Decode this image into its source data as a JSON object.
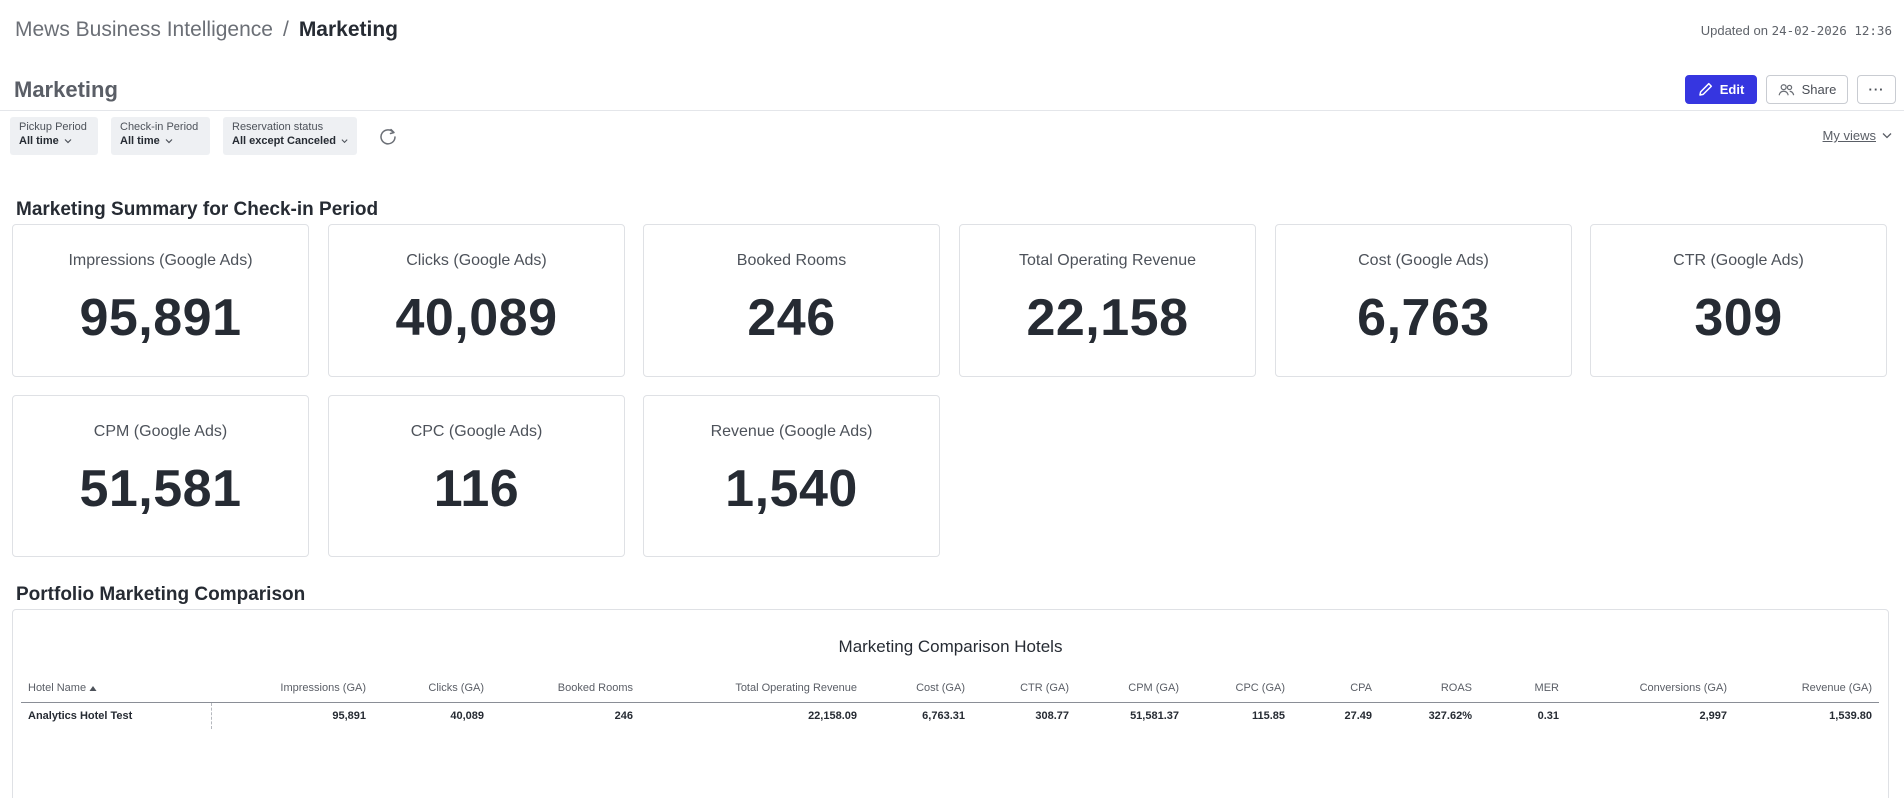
{
  "breadcrumb": {
    "parent": "Mews Business Intelligence",
    "separator": "/",
    "current": "Marketing"
  },
  "updated": {
    "prefix": "Updated on",
    "timestamp": "24-02-2026 12:36"
  },
  "page": {
    "title": "Marketing"
  },
  "actions": {
    "edit_label": "Edit",
    "share_label": "Share",
    "more_label": "···"
  },
  "filters": [
    {
      "label": "Pickup Period",
      "value": "All time"
    },
    {
      "label": "Check-in Period",
      "value": "All time"
    },
    {
      "label": "Reservation status",
      "value": "All except Canceled"
    }
  ],
  "my_views": {
    "label": "My views"
  },
  "summary": {
    "title": "Marketing Summary for Check-in Period",
    "cards": [
      {
        "label": "Impressions (Google Ads)",
        "value": "95,891"
      },
      {
        "label": "Clicks (Google Ads)",
        "value": "40,089"
      },
      {
        "label": "Booked Rooms",
        "value": "246"
      },
      {
        "label": "Total Operating Revenue",
        "value": "22,158"
      },
      {
        "label": "Cost (Google Ads)",
        "value": "6,763"
      },
      {
        "label": "CTR (Google Ads)",
        "value": "309"
      },
      {
        "label": "CPM (Google Ads)",
        "value": "51,581"
      },
      {
        "label": "CPC (Google Ads)",
        "value": "116"
      },
      {
        "label": "Revenue (Google Ads)",
        "value": "1,540"
      }
    ]
  },
  "comparison": {
    "title": "Portfolio Marketing Comparison",
    "table_title": "Marketing Comparison Hotels",
    "columns": [
      "Hotel Name",
      "Impressions (GA)",
      "Clicks (GA)",
      "Booked Rooms",
      "Total Operating Revenue",
      "Cost (GA)",
      "CTR (GA)",
      "CPM (GA)",
      "CPC (GA)",
      "CPA",
      "ROAS",
      "MER",
      "Conversions (GA)",
      "Revenue (GA)"
    ],
    "rows": [
      [
        "Analytics Hotel Test",
        "95,891",
        "40,089",
        "246",
        "22,158.09",
        "6,763.31",
        "308.77",
        "51,581.37",
        "115.85",
        "27.49",
        "327.62%",
        "0.31",
        "2,997",
        "1,539.80"
      ]
    ]
  },
  "colors": {
    "accent": "#3636e0",
    "text": "#262b33",
    "muted": "#5a5e66",
    "border": "#dfe1e5",
    "filter_bg": "#eef0f3"
  }
}
